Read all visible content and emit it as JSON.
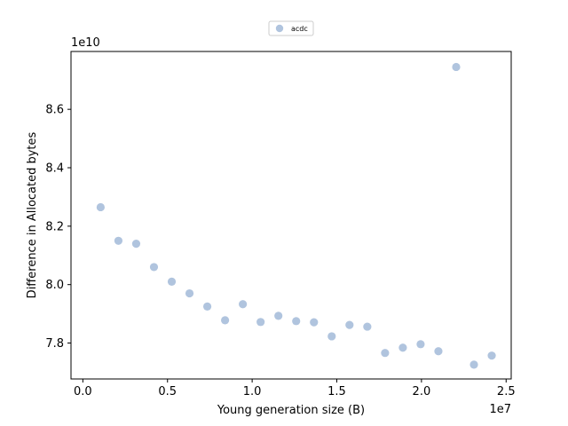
{
  "chart_data": {
    "type": "scatter",
    "title": "",
    "xlabel": "Young generation size (B)",
    "ylabel": "Difference in Allocated bytes",
    "x_offset_text": "1e7",
    "y_offset_text": "1e10",
    "x_scale": 10000000,
    "y_scale": 10000000000,
    "xlim": [
      -700000,
      25300000
    ],
    "ylim": [
      76770000000,
      87980000000
    ],
    "x_ticks": [
      0,
      5000000,
      10000000,
      15000000,
      20000000,
      25000000
    ],
    "x_tick_labels": [
      "0.0",
      "0.5",
      "1.0",
      "1.5",
      "2.0",
      "2.5"
    ],
    "y_ticks": [
      78000000000,
      80000000000,
      82000000000,
      84000000000,
      86000000000
    ],
    "y_tick_labels": [
      "7.8",
      "8.0",
      "8.2",
      "8.4",
      "8.6"
    ],
    "grid": false,
    "legend": {
      "position": "top-center-outside"
    },
    "series": [
      {
        "name": "acdc",
        "color": "#b0c4de",
        "points": [
          {
            "x": 1050000,
            "y": 82650000000
          },
          {
            "x": 2100000,
            "y": 81500000000
          },
          {
            "x": 3150000,
            "y": 81400000000
          },
          {
            "x": 4200000,
            "y": 80600000000
          },
          {
            "x": 5250000,
            "y": 80100000000
          },
          {
            "x": 6300000,
            "y": 79700000000
          },
          {
            "x": 7350000,
            "y": 79250000000
          },
          {
            "x": 8400000,
            "y": 78780000000
          },
          {
            "x": 9450000,
            "y": 79330000000
          },
          {
            "x": 10500000,
            "y": 78720000000
          },
          {
            "x": 11550000,
            "y": 78930000000
          },
          {
            "x": 12600000,
            "y": 78750000000
          },
          {
            "x": 13650000,
            "y": 78710000000
          },
          {
            "x": 14700000,
            "y": 78230000000
          },
          {
            "x": 15750000,
            "y": 78620000000
          },
          {
            "x": 16800000,
            "y": 78560000000
          },
          {
            "x": 17850000,
            "y": 77660000000
          },
          {
            "x": 18900000,
            "y": 77840000000
          },
          {
            "x": 19950000,
            "y": 77960000000
          },
          {
            "x": 21000000,
            "y": 77720000000
          },
          {
            "x": 22050000,
            "y": 87450000000
          },
          {
            "x": 23100000,
            "y": 77260000000
          },
          {
            "x": 24150000,
            "y": 77570000000
          }
        ]
      }
    ]
  }
}
